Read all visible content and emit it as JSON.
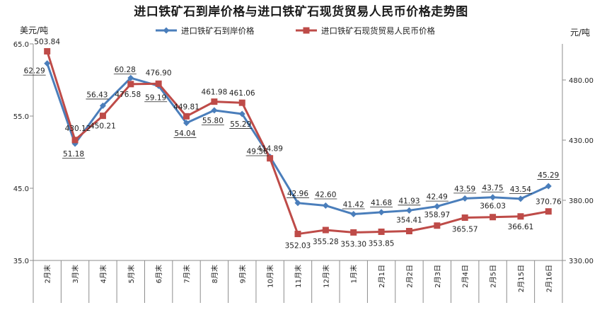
{
  "chart_data": {
    "type": "line",
    "title": "进口铁矿石到岸价格与进口铁矿石现货贸易人民币价格走势图",
    "left_unit": "美元/吨",
    "right_unit": "元/吨",
    "categories": [
      "2月末",
      "3月末",
      "4月末",
      "5月末",
      "6月末",
      "7月末",
      "8月末",
      "9月末",
      "10月末",
      "11月末",
      "12月末",
      "1月末",
      "2月1日",
      "2月2日",
      "2月3日",
      "2月4日",
      "2月5日",
      "2月15日",
      "2月16日"
    ],
    "y_left": {
      "min": 35.0,
      "max": 65.0,
      "ticks": [
        "35.0",
        "45.0",
        "55.0",
        "65.0"
      ]
    },
    "y_right": {
      "min": 330.0,
      "max": 510.0,
      "ticks": [
        "330.00",
        "380.00",
        "430.00",
        "480.00"
      ]
    },
    "grid": false,
    "legend_position": "top",
    "series": [
      {
        "name": "进口铁矿石到岸价格",
        "axis": "left",
        "color": "#4a7ebb",
        "marker": "diamond",
        "values": [
          62.29,
          51.18,
          56.43,
          60.28,
          59.19,
          54.04,
          55.8,
          55.29,
          49.36,
          42.96,
          42.6,
          41.42,
          41.68,
          41.93,
          42.49,
          43.59,
          43.75,
          43.54,
          45.29
        ],
        "labels": [
          "62.29",
          "51.18",
          "56.43",
          "60.28",
          "59.19",
          "54.04",
          "55.80",
          "55.29",
          "49.36",
          "42.96",
          "42.60",
          "41.42",
          "41.68",
          "41.93",
          "42.49",
          "43.59",
          "43.75",
          "43.54",
          "45.29"
        ]
      },
      {
        "name": "进口铁矿石现货贸易人民币价格",
        "axis": "right",
        "color": "#be4b48",
        "marker": "square",
        "values": [
          503.84,
          430.12,
          450.21,
          476.58,
          476.9,
          449.81,
          461.98,
          461.06,
          414.89,
          352.03,
          355.28,
          353.3,
          353.85,
          354.41,
          358.97,
          365.57,
          366.03,
          366.61,
          370.76
        ],
        "labels": [
          "503.84",
          "430.12",
          "450.21",
          "476.58",
          "476.90",
          "449.81",
          "461.98",
          "461.06",
          "414.89",
          "352.03",
          "355.28",
          "353.30",
          "353.85",
          "354.41",
          "358.97",
          "365.57",
          "366.03",
          "366.61",
          "370.76"
        ]
      }
    ]
  }
}
